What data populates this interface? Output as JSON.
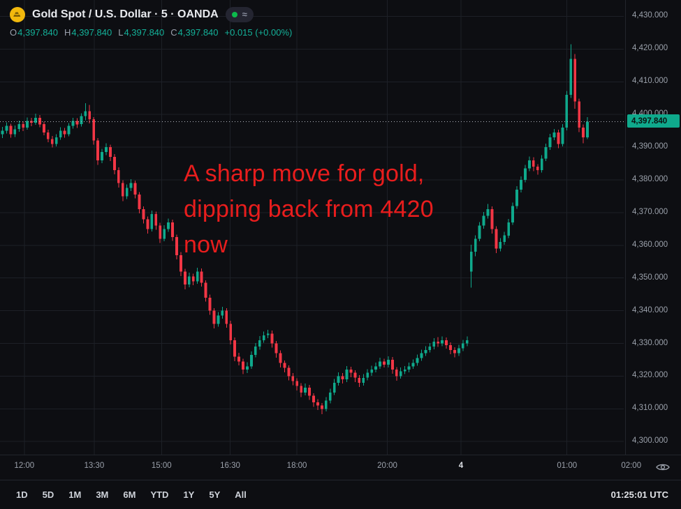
{
  "header": {
    "symbol_title": "Gold Spot / U.S. Dollar · 5 · OANDA",
    "data_mode_glyph": "≈",
    "status_color": "#0cbb4c",
    "ohlc": {
      "o_label": "O",
      "o": "4,397.840",
      "h_label": "H",
      "h": "4,397.840",
      "l_label": "L",
      "l": "4,397.840",
      "c_label": "C",
      "c": "4,397.840",
      "change": "+0.015 (+0.00%)"
    }
  },
  "annotation": {
    "lines": [
      "A sharp move for gold,",
      "dipping back from 4420",
      "now"
    ],
    "color": "#e81d1d"
  },
  "price_scale": {
    "labels": [
      "4,430.000",
      "4,420.000",
      "4,410.000",
      "4,400.000",
      "4,390.000",
      "4,380.000",
      "4,370.000",
      "4,360.000",
      "4,350.000",
      "4,340.000",
      "4,330.000",
      "4,320.000",
      "4,310.000",
      "4,300.000"
    ],
    "current": "4,397.840",
    "current_bg": "#0fa98c",
    "current_text_color": "#0b1110"
  },
  "time_scale": {
    "labels": [
      {
        "text": "12:00",
        "x": 0.039
      },
      {
        "text": "13:30",
        "x": 0.151
      },
      {
        "text": "15:00",
        "x": 0.259
      },
      {
        "text": "16:30",
        "x": 0.369
      },
      {
        "text": "18:00",
        "x": 0.476
      },
      {
        "text": "20:00",
        "x": 0.621
      },
      {
        "text": "4",
        "x": 0.739,
        "major": true
      },
      {
        "text": "01:00",
        "x": 0.909
      },
      {
        "text": "02:00",
        "x": 1.012
      }
    ]
  },
  "toolbar": {
    "ranges": [
      "1D",
      "5D",
      "1M",
      "3M",
      "6M",
      "YTD",
      "1Y",
      "5Y",
      "All"
    ],
    "clock": "01:25:01 UTC"
  },
  "chart_data": {
    "type": "candlestick",
    "title": "Gold Spot / U.S. Dollar · 5 · OANDA",
    "symbol": "XAU/USD",
    "interval_minutes": 5,
    "exchange": "OANDA",
    "ylim": [
      4296,
      4435
    ],
    "y_axis_ticks": [
      4430,
      4420,
      4410,
      4400,
      4390,
      4380,
      4370,
      4360,
      4350,
      4340,
      4330,
      4320,
      4310,
      4300
    ],
    "x_axis_ticks": [
      "12:00",
      "13:30",
      "15:00",
      "16:30",
      "18:00",
      "20:00",
      "4",
      "01:00",
      "02:00"
    ],
    "current_price": 4397.84,
    "change": 0.015,
    "change_pct": 0.0,
    "up_color": "#0fa98c",
    "down_color": "#f23645",
    "grid_color": "#1d2027",
    "candles": [
      [
        4394.0,
        4396.2,
        4392.8,
        4395.0
      ],
      [
        4395.0,
        4397.6,
        4394.2,
        4396.5
      ],
      [
        4396.5,
        4397.2,
        4392.9,
        4394.0
      ],
      [
        4394.0,
        4396.6,
        4393.1,
        4395.5
      ],
      [
        4395.5,
        4398.1,
        4394.7,
        4397.0
      ],
      [
        4397.0,
        4397.9,
        4394.9,
        4396.0
      ],
      [
        4396.0,
        4399.1,
        4395.3,
        4398.0
      ],
      [
        4398.0,
        4399.0,
        4396.4,
        4397.5
      ],
      [
        4397.5,
        4400.2,
        4396.8,
        4399.0
      ],
      [
        4399.0,
        4399.8,
        4396.1,
        4397.0
      ],
      [
        4397.0,
        4397.8,
        4393.6,
        4394.5
      ],
      [
        4394.5,
        4395.3,
        4391.5,
        4392.5
      ],
      [
        4392.5,
        4393.4,
        4389.9,
        4391.0
      ],
      [
        4391.0,
        4394.0,
        4390.2,
        4393.0
      ],
      [
        4393.0,
        4396.1,
        4392.3,
        4395.0
      ],
      [
        4395.0,
        4395.9,
        4392.9,
        4394.0
      ],
      [
        4394.0,
        4397.4,
        4393.3,
        4396.5
      ],
      [
        4396.5,
        4399.0,
        4395.7,
        4398.0
      ],
      [
        4398.0,
        4398.9,
        4395.9,
        4397.0
      ],
      [
        4397.0,
        4400.4,
        4396.3,
        4399.5
      ],
      [
        4399.5,
        4403.4,
        4398.2,
        4401.0
      ],
      [
        4401.0,
        4402.9,
        4397.3,
        4398.5
      ],
      [
        4398.5,
        4399.2,
        4390.8,
        4392.0
      ],
      [
        4392.0,
        4392.8,
        4384.6,
        4386.0
      ],
      [
        4386.0,
        4389.5,
        4385.1,
        4388.5
      ],
      [
        4388.5,
        4391.2,
        4387.6,
        4390.0
      ],
      [
        4390.0,
        4390.8,
        4385.8,
        4387.0
      ],
      [
        4387.0,
        4387.9,
        4381.7,
        4383.0
      ],
      [
        4383.0,
        4383.8,
        4377.6,
        4379.0
      ],
      [
        4379.0,
        4379.9,
        4373.5,
        4375.0
      ],
      [
        4375.0,
        4378.6,
        4374.1,
        4377.5
      ],
      [
        4377.5,
        4380.2,
        4376.6,
        4379.0
      ],
      [
        4379.0,
        4379.8,
        4374.3,
        4375.5
      ],
      [
        4375.5,
        4376.3,
        4369.8,
        4371.0
      ],
      [
        4371.0,
        4371.9,
        4366.7,
        4368.0
      ],
      [
        4368.0,
        4368.8,
        4363.6,
        4365.0
      ],
      [
        4365.0,
        4370.6,
        4364.2,
        4369.5
      ],
      [
        4369.5,
        4370.3,
        4364.8,
        4366.0
      ],
      [
        4366.0,
        4366.9,
        4360.7,
        4362.0
      ],
      [
        4362.0,
        4366.1,
        4361.2,
        4365.0
      ],
      [
        4365.0,
        4368.2,
        4364.1,
        4367.0
      ],
      [
        4367.0,
        4367.8,
        4361.3,
        4362.5
      ],
      [
        4362.5,
        4363.3,
        4355.7,
        4357.0
      ],
      [
        4357.0,
        4357.9,
        4350.6,
        4352.0
      ],
      [
        4352.0,
        4352.8,
        4346.5,
        4348.0
      ],
      [
        4348.0,
        4351.6,
        4347.2,
        4350.5
      ],
      [
        4350.5,
        4351.3,
        4347.8,
        4349.0
      ],
      [
        4349.0,
        4353.1,
        4348.2,
        4352.0
      ],
      [
        4352.0,
        4352.9,
        4347.4,
        4348.5
      ],
      [
        4348.5,
        4349.3,
        4342.8,
        4344.0
      ],
      [
        4344.0,
        4344.9,
        4338.7,
        4340.0
      ],
      [
        4340.0,
        4340.8,
        4334.6,
        4336.0
      ],
      [
        4336.0,
        4339.6,
        4335.1,
        4338.5
      ],
      [
        4338.5,
        4341.2,
        4337.6,
        4340.0
      ],
      [
        4340.0,
        4340.8,
        4334.8,
        4336.0
      ],
      [
        4336.0,
        4336.9,
        4329.7,
        4331.0
      ],
      [
        4331.0,
        4331.8,
        4324.6,
        4326.0
      ],
      [
        4326.0,
        4327.1,
        4323.3,
        4324.5
      ],
      [
        4324.5,
        4325.3,
        4320.6,
        4322.0
      ],
      [
        4322.0,
        4324.2,
        4320.9,
        4323.0
      ],
      [
        4323.0,
        4327.6,
        4322.2,
        4326.5
      ],
      [
        4326.5,
        4330.1,
        4325.7,
        4329.0
      ],
      [
        4329.0,
        4332.2,
        4328.1,
        4331.0
      ],
      [
        4331.0,
        4333.6,
        4330.2,
        4332.5
      ],
      [
        4332.5,
        4334.2,
        4331.6,
        4333.0
      ],
      [
        4333.0,
        4333.9,
        4328.7,
        4330.0
      ],
      [
        4330.0,
        4330.8,
        4325.6,
        4327.0
      ],
      [
        4327.0,
        4327.9,
        4322.7,
        4324.0
      ],
      [
        4324.0,
        4324.8,
        4321.2,
        4322.5
      ],
      [
        4322.5,
        4323.3,
        4318.7,
        4320.0
      ],
      [
        4320.0,
        4320.9,
        4317.2,
        4318.5
      ],
      [
        4318.5,
        4319.3,
        4315.6,
        4317.0
      ],
      [
        4317.0,
        4317.8,
        4313.6,
        4315.0
      ],
      [
        4315.0,
        4317.7,
        4314.1,
        4316.5
      ],
      [
        4316.5,
        4317.3,
        4312.7,
        4314.0
      ],
      [
        4314.0,
        4314.8,
        4310.6,
        4312.0
      ],
      [
        4312.0,
        4312.9,
        4309.6,
        4311.0
      ],
      [
        4311.0,
        4311.8,
        4308.4,
        4310.0
      ],
      [
        4310.0,
        4313.6,
        4309.2,
        4312.5
      ],
      [
        4312.5,
        4316.1,
        4311.7,
        4315.0
      ],
      [
        4315.0,
        4319.1,
        4314.2,
        4318.0
      ],
      [
        4318.0,
        4321.2,
        4317.1,
        4320.0
      ],
      [
        4320.0,
        4320.9,
        4317.7,
        4319.0
      ],
      [
        4319.0,
        4323.1,
        4318.2,
        4322.0
      ],
      [
        4322.0,
        4322.9,
        4319.7,
        4321.0
      ],
      [
        4321.0,
        4321.8,
        4318.2,
        4319.5
      ],
      [
        4319.5,
        4320.3,
        4316.7,
        4318.0
      ],
      [
        4318.0,
        4320.6,
        4317.1,
        4319.5
      ],
      [
        4319.5,
        4322.1,
        4318.7,
        4321.0
      ],
      [
        4321.0,
        4323.2,
        4320.1,
        4322.0
      ],
      [
        4322.0,
        4324.1,
        4321.2,
        4323.0
      ],
      [
        4323.0,
        4325.6,
        4322.2,
        4324.5
      ],
      [
        4324.5,
        4325.3,
        4322.6,
        4323.5
      ],
      [
        4323.5,
        4326.1,
        4322.7,
        4325.0
      ],
      [
        4325.0,
        4325.8,
        4320.7,
        4322.0
      ],
      [
        4322.0,
        4322.8,
        4318.6,
        4320.0
      ],
      [
        4320.0,
        4322.6,
        4319.2,
        4321.5
      ],
      [
        4321.5,
        4323.1,
        4320.6,
        4322.0
      ],
      [
        4322.0,
        4324.1,
        4321.2,
        4323.0
      ],
      [
        4323.0,
        4325.1,
        4322.2,
        4324.0
      ],
      [
        4324.0,
        4326.6,
        4323.2,
        4325.5
      ],
      [
        4325.5,
        4328.1,
        4324.7,
        4327.0
      ],
      [
        4327.0,
        4329.1,
        4326.2,
        4328.0
      ],
      [
        4328.0,
        4330.1,
        4327.2,
        4329.0
      ],
      [
        4329.0,
        4331.6,
        4328.2,
        4330.5
      ],
      [
        4330.5,
        4331.9,
        4328.9,
        4330.0
      ],
      [
        4330.0,
        4332.1,
        4329.2,
        4331.0
      ],
      [
        4331.0,
        4331.8,
        4328.4,
        4329.5
      ],
      [
        4329.5,
        4330.3,
        4326.7,
        4328.0
      ],
      [
        4328.0,
        4328.8,
        4325.7,
        4327.0
      ],
      [
        4327.0,
        4329.6,
        4326.2,
        4328.5
      ],
      [
        4328.5,
        4331.1,
        4327.7,
        4330.0
      ],
      [
        4330.0,
        4332.1,
        4329.1,
        4331.0
      ],
      [
        4352.0,
        4360.2,
        4347.1,
        4358.0
      ],
      [
        4358.0,
        4363.1,
        4356.6,
        4362.0
      ],
      [
        4362.0,
        4367.1,
        4361.2,
        4366.0
      ],
      [
        4366.0,
        4370.2,
        4365.1,
        4369.0
      ],
      [
        4369.0,
        4372.6,
        4368.2,
        4371.0
      ],
      [
        4371.0,
        4371.9,
        4363.6,
        4365.0
      ],
      [
        4365.0,
        4365.8,
        4357.6,
        4359.0
      ],
      [
        4359.0,
        4362.2,
        4358.1,
        4361.0
      ],
      [
        4361.0,
        4364.1,
        4360.2,
        4363.0
      ],
      [
        4363.0,
        4368.1,
        4362.2,
        4367.0
      ],
      [
        4367.0,
        4373.1,
        4366.2,
        4372.0
      ],
      [
        4372.0,
        4378.1,
        4371.2,
        4377.0
      ],
      [
        4377.0,
        4381.1,
        4376.2,
        4380.0
      ],
      [
        4380.0,
        4384.6,
        4379.2,
        4383.5
      ],
      [
        4383.5,
        4387.1,
        4382.7,
        4386.0
      ],
      [
        4386.0,
        4386.9,
        4382.7,
        4384.0
      ],
      [
        4384.0,
        4384.8,
        4381.6,
        4383.0
      ],
      [
        4383.0,
        4387.6,
        4382.2,
        4386.5
      ],
      [
        4386.5,
        4391.1,
        4385.7,
        4390.0
      ],
      [
        4390.0,
        4394.1,
        4389.2,
        4393.0
      ],
      [
        4393.0,
        4395.6,
        4392.1,
        4394.5
      ],
      [
        4394.5,
        4395.3,
        4389.7,
        4391.0
      ],
      [
        4391.0,
        4397.1,
        4390.2,
        4396.0
      ],
      [
        4396.0,
        4407.2,
        4395.1,
        4406.0
      ],
      [
        4406.0,
        4421.5,
        4405.1,
        4417.0
      ],
      [
        4417.0,
        4418.5,
        4401.7,
        4404.0
      ],
      [
        4404.0,
        4404.8,
        4394.6,
        4396.0
      ],
      [
        4396.0,
        4396.9,
        4391.2,
        4393.0
      ],
      [
        4393.0,
        4399.2,
        4392.5,
        4397.84
      ]
    ]
  }
}
